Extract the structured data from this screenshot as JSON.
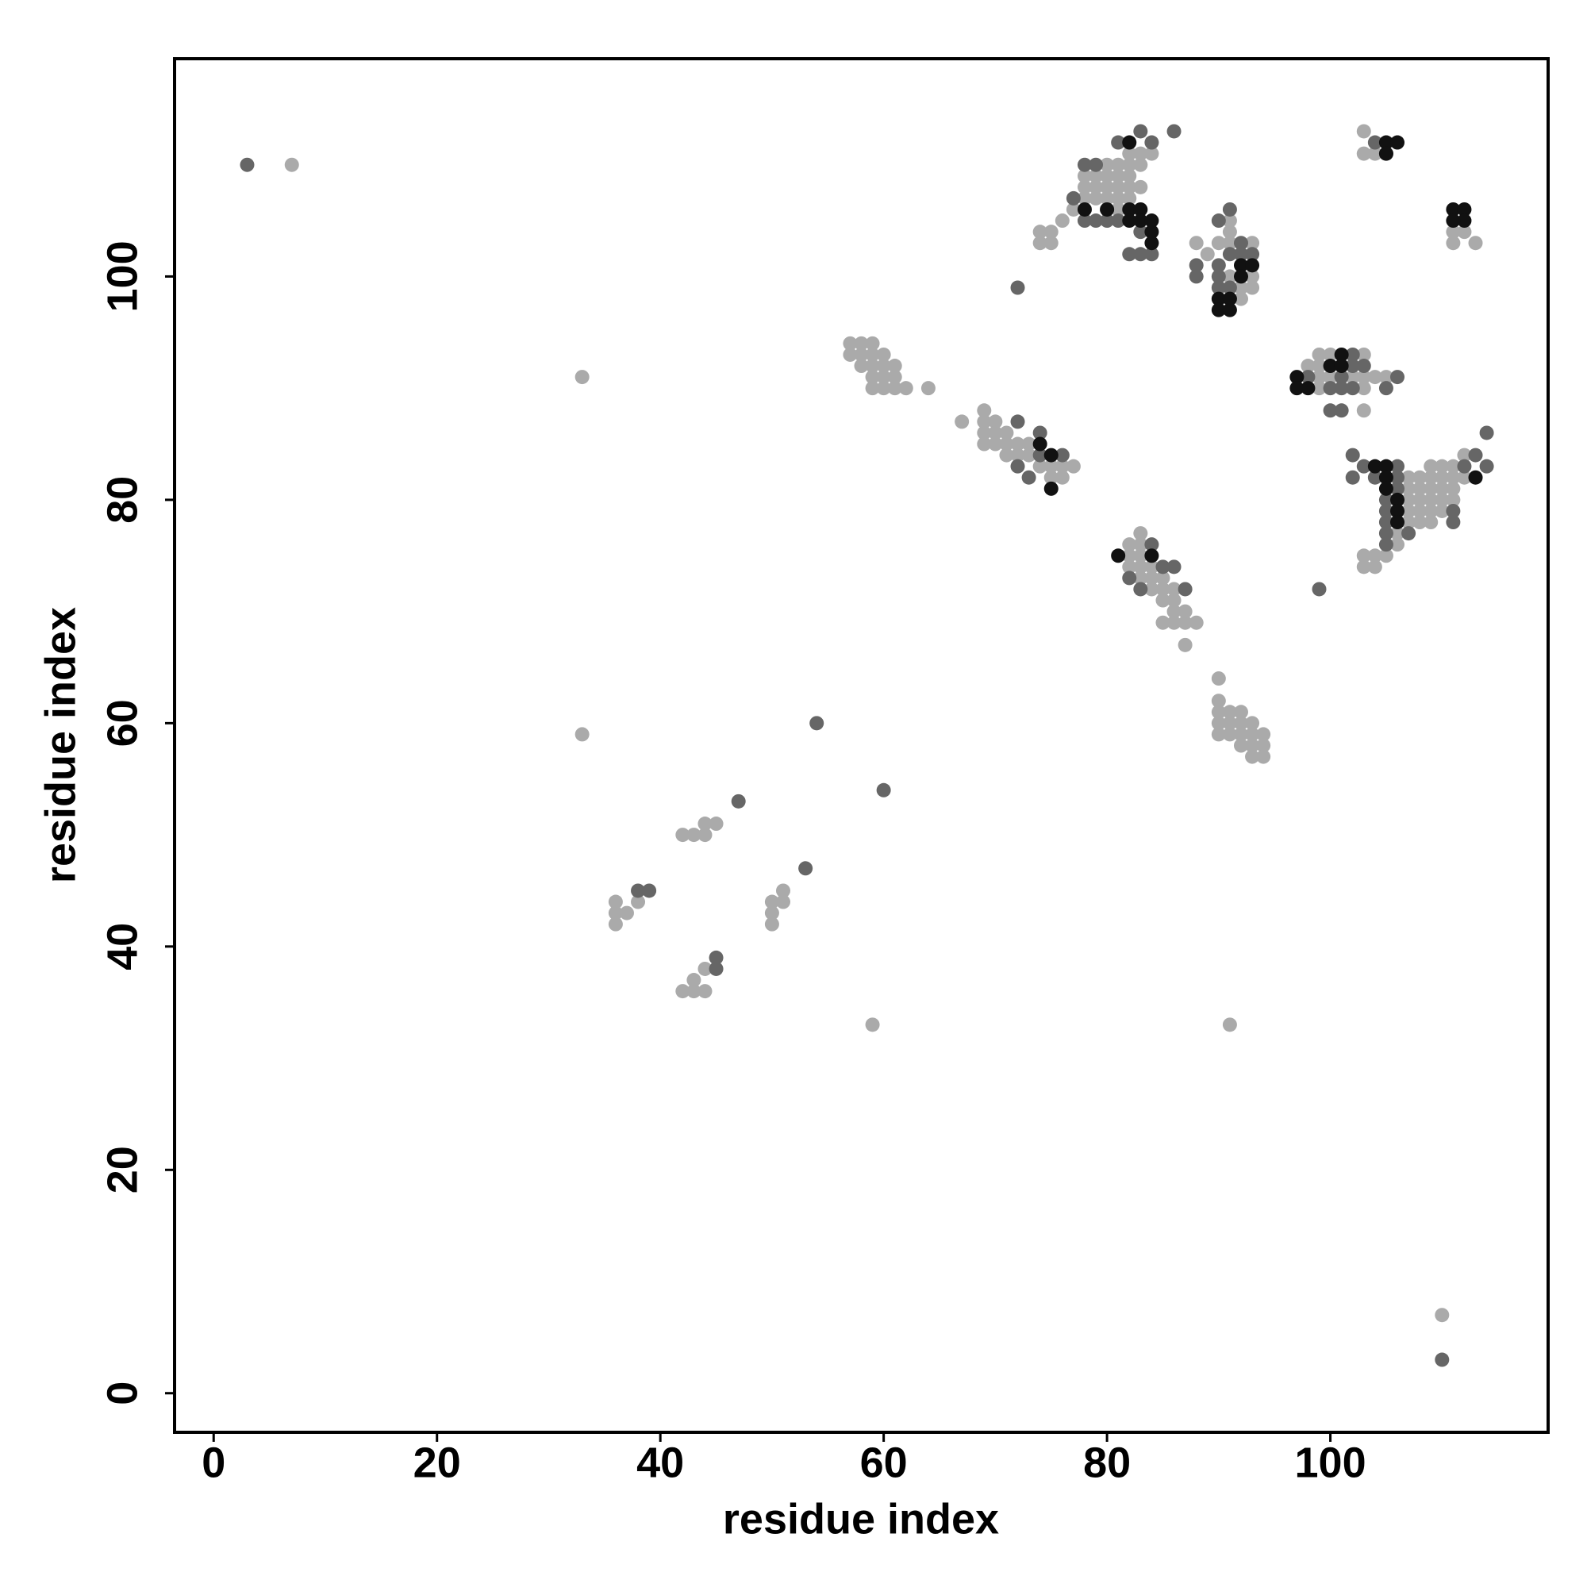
{
  "chart_data": {
    "type": "scatter",
    "xlabel": "residue index",
    "ylabel": "residue index",
    "xlim": [
      -3.5,
      119.5
    ],
    "ylim": [
      -3.5,
      119.5
    ],
    "xticks": [
      0,
      20,
      40,
      60,
      80,
      100
    ],
    "yticks": [
      0,
      20,
      40,
      60,
      80,
      100
    ],
    "series": [
      {
        "color": "#aaaaaa",
        "x": [
          7,
          33,
          33,
          59,
          91,
          110,
          42,
          43,
          44,
          44,
          45,
          36,
          36,
          37,
          36,
          38,
          50,
          50,
          50,
          51,
          51,
          42,
          43,
          43,
          44,
          44,
          57,
          58,
          59,
          57,
          58,
          59,
          60,
          58,
          59,
          60,
          61,
          59,
          60,
          61,
          59,
          60,
          61,
          62,
          64,
          67,
          69,
          69,
          70,
          69,
          70,
          71,
          69,
          70,
          71,
          72,
          73,
          71,
          72,
          73,
          74,
          75,
          76,
          77,
          75,
          76,
          82,
          83,
          83,
          82,
          83,
          82,
          83,
          84,
          83,
          84,
          85,
          84,
          85,
          86,
          85,
          86,
          86,
          87,
          85,
          86,
          87,
          88,
          87,
          90,
          90,
          90,
          91,
          92,
          90,
          91,
          92,
          93,
          90,
          91,
          92,
          93,
          94,
          92,
          93,
          94,
          93,
          94,
          74,
          74,
          75,
          75,
          76,
          77,
          78,
          78,
          78,
          79,
          79,
          79,
          80,
          80,
          80,
          80,
          80,
          81,
          81,
          81,
          81,
          81,
          82,
          82,
          82,
          82,
          83,
          83,
          83,
          84,
          82,
          88,
          89,
          90,
          91,
          91,
          91,
          93,
          93,
          93,
          92,
          92,
          91,
          98,
          99,
          99,
          99,
          100,
          100,
          102,
          103,
          103,
          103,
          104,
          105,
          103,
          99,
          103,
          103,
          104,
          111,
          111,
          112,
          113,
          106,
          106,
          106,
          106,
          106,
          107,
          107,
          107,
          107,
          107,
          108,
          108,
          108,
          108,
          108,
          109,
          109,
          109,
          109,
          109,
          109,
          110,
          110,
          110,
          110,
          110,
          111,
          111,
          111,
          111,
          103,
          103,
          104,
          104,
          105,
          106,
          106,
          112,
          112
        ],
        "y": [
          110,
          91,
          59,
          33,
          33,
          7,
          50,
          50,
          50,
          51,
          51,
          44,
          43,
          43,
          42,
          44,
          44,
          43,
          42,
          44,
          45,
          36,
          37,
          36,
          36,
          38,
          94,
          94,
          94,
          93,
          93,
          93,
          93,
          92,
          92,
          92,
          92,
          91,
          91,
          91,
          90,
          90,
          90,
          90,
          90,
          87,
          88,
          87,
          87,
          86,
          86,
          86,
          85,
          85,
          85,
          85,
          85,
          84,
          84,
          84,
          83,
          83,
          83,
          83,
          82,
          82,
          76,
          77,
          76,
          75,
          75,
          74,
          74,
          74,
          73,
          73,
          73,
          72,
          72,
          72,
          71,
          71,
          70,
          70,
          69,
          69,
          69,
          69,
          67,
          64,
          62,
          61,
          61,
          61,
          60,
          60,
          60,
          60,
          59,
          59,
          59,
          59,
          59,
          58,
          58,
          58,
          57,
          57,
          103,
          104,
          103,
          104,
          105,
          106,
          107,
          108,
          109,
          107,
          108,
          109,
          106,
          107,
          108,
          109,
          110,
          106,
          107,
          108,
          109,
          110,
          107,
          108,
          109,
          110,
          108,
          110,
          111,
          111,
          111,
          103,
          102,
          103,
          105,
          104,
          103,
          103,
          100,
          99,
          99,
          98,
          100,
          92,
          93,
          92,
          91,
          93,
          91,
          91,
          93,
          91,
          90,
          91,
          91,
          88,
          90,
          113,
          111,
          111,
          104,
          103,
          104,
          103,
          78,
          79,
          80,
          81,
          82,
          78,
          79,
          80,
          81,
          82,
          78,
          79,
          80,
          81,
          82,
          78,
          79,
          80,
          81,
          82,
          83,
          79,
          80,
          81,
          82,
          83,
          80,
          81,
          82,
          83,
          75,
          74,
          74,
          75,
          75,
          76,
          77,
          84,
          82
        ]
      },
      {
        "color": "#666666",
        "x": [
          3,
          54,
          60,
          47,
          110,
          72,
          99,
          53,
          38,
          39,
          45,
          45,
          72,
          74,
          72,
          73,
          76,
          74,
          84,
          85,
          86,
          82,
          83,
          87,
          78,
          79,
          77,
          84,
          83,
          86,
          81,
          78,
          79,
          80,
          81,
          83,
          82,
          83,
          84,
          90,
          91,
          88,
          88,
          90,
          90,
          91,
          92,
          92,
          93,
          90,
          91,
          98,
          101,
          102,
          102,
          100,
          101,
          102,
          103,
          105,
          106,
          100,
          101,
          104,
          105,
          102,
          102,
          103,
          104,
          105,
          105,
          105,
          105,
          105,
          106,
          106,
          106,
          107,
          111,
          111,
          112,
          113,
          114,
          114
        ],
        "y": [
          110,
          60,
          54,
          53,
          3,
          99,
          72,
          47,
          45,
          45,
          39,
          38,
          87,
          86,
          83,
          82,
          84,
          84,
          76,
          74,
          74,
          73,
          72,
          72,
          110,
          110,
          107,
          112,
          113,
          113,
          112,
          105,
          105,
          105,
          105,
          104,
          102,
          102,
          102,
          105,
          106,
          101,
          100,
          101,
          100,
          102,
          103,
          102,
          102,
          99,
          99,
          91,
          91,
          93,
          92,
          90,
          90,
          90,
          92,
          90,
          91,
          88,
          88,
          112,
          111,
          84,
          82,
          83,
          82,
          80,
          79,
          78,
          77,
          76,
          83,
          82,
          81,
          77,
          78,
          79,
          83,
          84,
          86,
          83
        ]
      },
      {
        "color": "#111111",
        "x": [
          74,
          75,
          75,
          81,
          84,
          82,
          78,
          80,
          82,
          83,
          82,
          83,
          84,
          84,
          84,
          90,
          90,
          91,
          91,
          92,
          93,
          92,
          97,
          97,
          98,
          100,
          101,
          101,
          105,
          106,
          105,
          111,
          112,
          112,
          111,
          104,
          105,
          105,
          105,
          106,
          106,
          106,
          113
        ],
        "y": [
          85,
          84,
          81,
          75,
          75,
          112,
          106,
          106,
          106,
          106,
          105,
          105,
          105,
          104,
          103,
          98,
          97,
          97,
          98,
          101,
          101,
          100,
          91,
          90,
          90,
          92,
          93,
          92,
          112,
          112,
          111,
          106,
          106,
          105,
          105,
          83,
          83,
          82,
          81,
          80,
          79,
          78,
          82
        ]
      }
    ]
  }
}
